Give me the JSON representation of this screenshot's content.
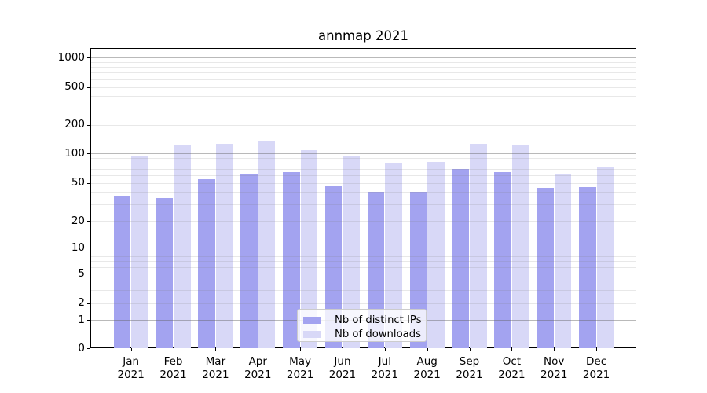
{
  "figure": {
    "title": "annmap 2021"
  },
  "axes": {
    "y_tick_labels": [
      "0",
      "1",
      "2",
      "5",
      "10",
      "20",
      "50",
      "100",
      "200",
      "500",
      "1000"
    ],
    "x_year": "2021",
    "x_months": [
      "Jan",
      "Feb",
      "Mar",
      "Apr",
      "May",
      "Jun",
      "Jul",
      "Aug",
      "Sep",
      "Oct",
      "Nov",
      "Dec"
    ]
  },
  "legend": {
    "items": [
      {
        "label": "Nb of distinct IPs",
        "color": "#a3a3f0"
      },
      {
        "label": "Nb of downloads",
        "color": "#d8d8f7"
      }
    ]
  },
  "chart_data": {
    "type": "bar",
    "title": "annmap 2021",
    "categories": [
      "Jan 2021",
      "Feb 2021",
      "Mar 2021",
      "Apr 2021",
      "May 2021",
      "Jun 2021",
      "Jul 2021",
      "Aug 2021",
      "Sep 2021",
      "Oct 2021",
      "Nov 2021",
      "Dec 2021"
    ],
    "series": [
      {
        "name": "Nb of distinct IPs",
        "color": "#a3a3f0",
        "values": [
          37,
          35,
          55,
          61,
          65,
          46,
          40,
          40,
          70,
          65,
          44,
          45
        ]
      },
      {
        "name": "Nb of downloads",
        "color": "#d8d8f7",
        "values": [
          95,
          124,
          127,
          134,
          109,
          95,
          79,
          82,
          126,
          124,
          62,
          72
        ]
      }
    ],
    "xlabel": "",
    "ylabel": "",
    "yscale": "symlog",
    "yticks": [
      0,
      1,
      2,
      5,
      10,
      20,
      50,
      100,
      200,
      500,
      1000
    ],
    "ylim": [
      0,
      1260
    ],
    "grid": true,
    "legend_position": "lower center"
  }
}
